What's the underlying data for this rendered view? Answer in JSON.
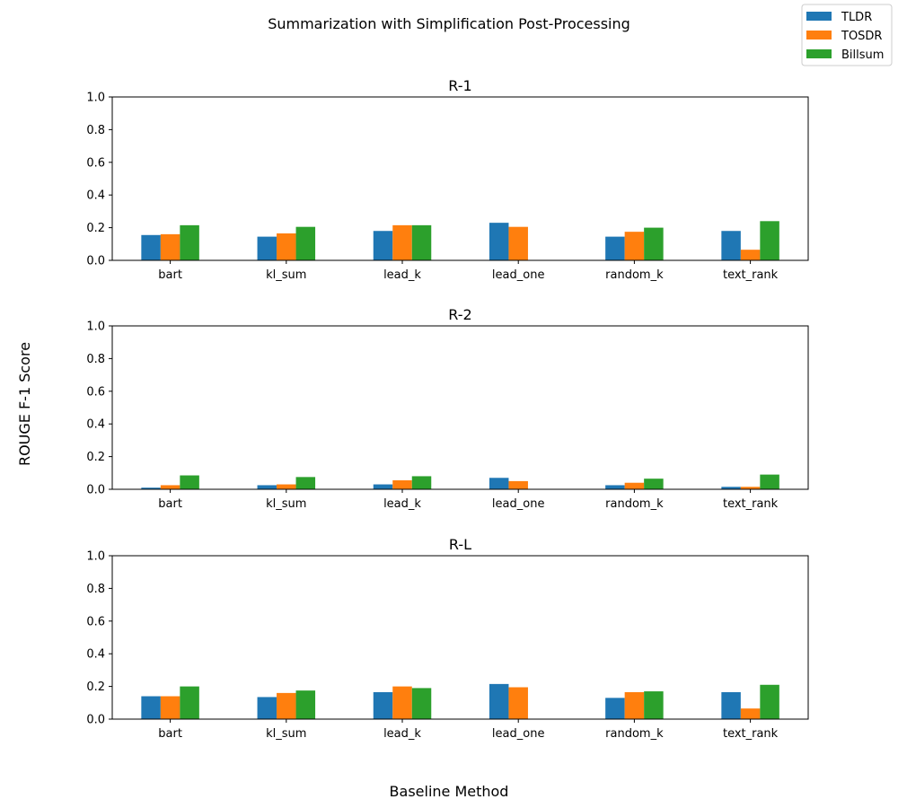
{
  "figure": {
    "suptitle": "Summarization with Simplification Post-Processing",
    "xlabel": "Baseline Method",
    "ylabel": "ROUGE F-1 Score",
    "legend": {
      "placement": "top-right",
      "entries": [
        {
          "name": "TLDR",
          "color": "#1f77b4"
        },
        {
          "name": "TOSDR",
          "color": "#ff7f0e"
        },
        {
          "name": "Billsum",
          "color": "#2ca02c"
        }
      ]
    }
  },
  "chart_data": [
    {
      "type": "bar",
      "title": "R-1",
      "categories": [
        "bart",
        "kl_sum",
        "lead_k",
        "lead_one",
        "random_k",
        "text_rank"
      ],
      "ylim": [
        0,
        1
      ],
      "yticks": [
        "0.0",
        "0.2",
        "0.4",
        "0.6",
        "0.8",
        "1.0"
      ],
      "series": [
        {
          "name": "TLDR",
          "color": "#1f77b4",
          "values": [
            0.155,
            0.145,
            0.18,
            0.23,
            0.145,
            0.18
          ]
        },
        {
          "name": "TOSDR",
          "color": "#ff7f0e",
          "values": [
            0.16,
            0.165,
            0.215,
            0.205,
            0.175,
            0.065
          ]
        },
        {
          "name": "Billsum",
          "color": "#2ca02c",
          "values": [
            0.215,
            0.205,
            0.215,
            0,
            0.2,
            0.24
          ]
        }
      ]
    },
    {
      "type": "bar",
      "title": "R-2",
      "categories": [
        "bart",
        "kl_sum",
        "lead_k",
        "lead_one",
        "random_k",
        "text_rank"
      ],
      "ylim": [
        0,
        1
      ],
      "yticks": [
        "0.0",
        "0.2",
        "0.4",
        "0.6",
        "0.8",
        "1.0"
      ],
      "series": [
        {
          "name": "TLDR",
          "color": "#1f77b4",
          "values": [
            0.01,
            0.025,
            0.03,
            0.07,
            0.025,
            0.015
          ]
        },
        {
          "name": "TOSDR",
          "color": "#ff7f0e",
          "values": [
            0.025,
            0.03,
            0.055,
            0.05,
            0.04,
            0.015
          ]
        },
        {
          "name": "Billsum",
          "color": "#2ca02c",
          "values": [
            0.085,
            0.075,
            0.08,
            0,
            0.065,
            0.09
          ]
        }
      ]
    },
    {
      "type": "bar",
      "title": "R-L",
      "categories": [
        "bart",
        "kl_sum",
        "lead_k",
        "lead_one",
        "random_k",
        "text_rank"
      ],
      "ylim": [
        0,
        1
      ],
      "yticks": [
        "0.0",
        "0.2",
        "0.4",
        "0.6",
        "0.8",
        "1.0"
      ],
      "series": [
        {
          "name": "TLDR",
          "color": "#1f77b4",
          "values": [
            0.14,
            0.135,
            0.165,
            0.215,
            0.13,
            0.165
          ]
        },
        {
          "name": "TOSDR",
          "color": "#ff7f0e",
          "values": [
            0.14,
            0.16,
            0.2,
            0.195,
            0.165,
            0.065
          ]
        },
        {
          "name": "Billsum",
          "color": "#2ca02c",
          "values": [
            0.2,
            0.175,
            0.19,
            0,
            0.17,
            0.21
          ]
        }
      ]
    }
  ]
}
